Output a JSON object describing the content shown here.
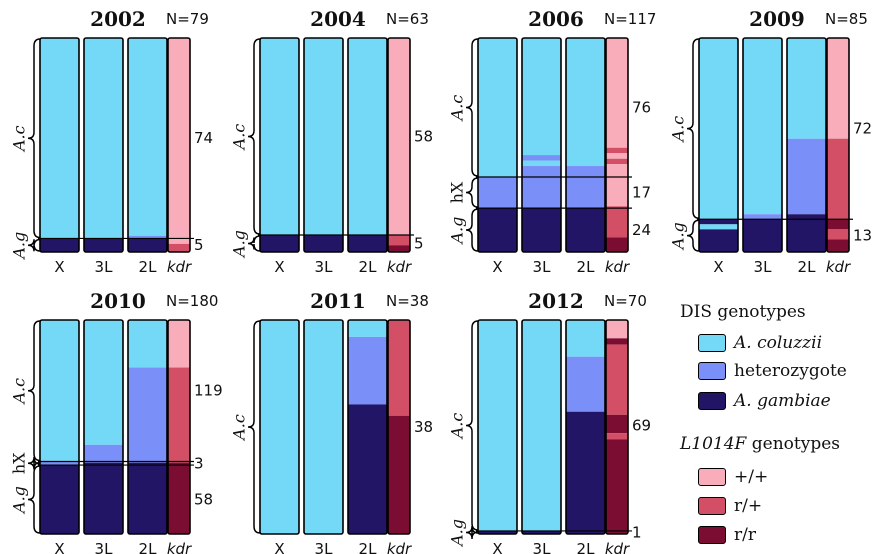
{
  "chart_data": {
    "type": "bar",
    "categories": [
      "X",
      "3L",
      "2L",
      "kdr"
    ],
    "columns": [
      "X",
      "3L",
      "2L",
      "kdr"
    ],
    "colors": {
      "coluzzii": "#74d9f6",
      "heterozygote": "#7a8ff8",
      "gambiae": "#221566",
      "kdr_ss": "#f9adbb",
      "kdr_rs": "#d34f66",
      "kdr_rr": "#7b0d33"
    },
    "panels": [
      {
        "title": "2002",
        "n": "N=79",
        "groups": [
          {
            "label": "A.c",
            "italic": true,
            "count": "74"
          },
          {
            "label": "A.g",
            "italic": true,
            "count": "5"
          }
        ],
        "columns": {
          "X": [
            [
              "coluzzii",
              74
            ],
            [
              "gambiae",
              5
            ]
          ],
          "3L": [
            [
              "coluzzii",
              74
            ],
            [
              "gambiae",
              5
            ]
          ],
          "2L": [
            [
              "coluzzii",
              73
            ],
            [
              "heterozygote",
              1
            ],
            [
              "gambiae",
              5
            ]
          ],
          "kdr": [
            [
              "kdr_ss",
              76
            ],
            [
              "kdr_rs",
              3
            ]
          ]
        }
      },
      {
        "title": "2004",
        "n": "N=63",
        "groups": [
          {
            "label": "A.c",
            "italic": true,
            "count": "58"
          },
          {
            "label": "A.g",
            "italic": true,
            "count": "5"
          }
        ],
        "columns": {
          "X": [
            [
              "coluzzii",
              58
            ],
            [
              "gambiae",
              5
            ]
          ],
          "3L": [
            [
              "coluzzii",
              58
            ],
            [
              "gambiae",
              5
            ]
          ],
          "2L": [
            [
              "coluzzii",
              58
            ],
            [
              "gambiae",
              5
            ]
          ],
          "kdr": [
            [
              "kdr_ss",
              58
            ],
            [
              "kdr_rs",
              3
            ],
            [
              "kdr_rr",
              2
            ]
          ]
        }
      },
      {
        "title": "2006",
        "n": "N=117",
        "groups": [
          {
            "label": "A.c",
            "italic": true,
            "count": "76"
          },
          {
            "label": "hX",
            "italic": false,
            "count": "17"
          },
          {
            "label": "A.g",
            "italic": true,
            "count": "24"
          }
        ],
        "columns": {
          "X": [
            [
              "coluzzii",
              76
            ],
            [
              "heterozygote",
              17
            ],
            [
              "gambiae",
              24
            ]
          ],
          "3L": [
            [
              "coluzzii",
              64
            ],
            [
              "heterozygote",
              3
            ],
            [
              "coluzzii",
              3
            ],
            [
              "heterozygote",
              23
            ],
            [
              "gambiae",
              24
            ]
          ],
          "2L": [
            [
              "coluzzii",
              70
            ],
            [
              "heterozygote",
              23
            ],
            [
              "gambiae",
              24
            ]
          ],
          "kdr": [
            [
              "kdr_ss",
              60
            ],
            [
              "kdr_rs",
              3
            ],
            [
              "kdr_ss",
              3
            ],
            [
              "kdr_rs",
              3
            ],
            [
              "kdr_ss",
              23
            ],
            [
              "kdr_rs",
              17
            ],
            [
              "kdr_rr",
              8
            ]
          ]
        }
      },
      {
        "title": "2009",
        "n": "N=85",
        "groups": [
          {
            "label": "A.c",
            "italic": true,
            "count": "72"
          },
          {
            "label": "A.g",
            "italic": true,
            "count": "13"
          }
        ],
        "columns": {
          "X": [
            [
              "coluzzii",
              72
            ],
            [
              "gambiae",
              2
            ],
            [
              "coluzzii",
              2
            ],
            [
              "gambiae",
              9
            ]
          ],
          "3L": [
            [
              "coluzzii",
              70
            ],
            [
              "heterozygote",
              2
            ],
            [
              "gambiae",
              13
            ]
          ],
          "2L": [
            [
              "coluzzii",
              40
            ],
            [
              "heterozygote",
              30
            ],
            [
              "gambiae",
              15
            ]
          ],
          "kdr": [
            [
              "kdr_ss",
              40
            ],
            [
              "kdr_rs",
              32
            ],
            [
              "kdr_rr",
              4
            ],
            [
              "kdr_rs",
              4
            ],
            [
              "kdr_rr",
              5
            ]
          ]
        }
      },
      {
        "title": "2010",
        "n": "N=180",
        "groups": [
          {
            "label": "A.c",
            "italic": true,
            "count": "119"
          },
          {
            "label": "hX",
            "italic": false,
            "count": "3"
          },
          {
            "label": "A.g",
            "italic": true,
            "count": "58"
          }
        ],
        "columns": {
          "X": [
            [
              "coluzzii",
              119
            ],
            [
              "heterozygote",
              3
            ],
            [
              "gambiae",
              58
            ]
          ],
          "3L": [
            [
              "coluzzii",
              105
            ],
            [
              "heterozygote",
              15
            ],
            [
              "gambiae",
              60
            ]
          ],
          "2L": [
            [
              "coluzzii",
              40
            ],
            [
              "heterozygote",
              80
            ],
            [
              "gambiae",
              60
            ]
          ],
          "kdr": [
            [
              "kdr_ss",
              40
            ],
            [
              "kdr_rs",
              80
            ],
            [
              "kdr_rr",
              60
            ]
          ]
        }
      },
      {
        "title": "2011",
        "n": "N=38",
        "groups": [
          {
            "label": "A.c",
            "italic": true,
            "count": "38"
          }
        ],
        "columns": {
          "X": [
            [
              "coluzzii",
              38
            ]
          ],
          "3L": [
            [
              "coluzzii",
              38
            ]
          ],
          "2L": [
            [
              "coluzzii",
              3
            ],
            [
              "heterozygote",
              12
            ],
            [
              "gambiae",
              23
            ]
          ],
          "kdr": [
            [
              "kdr_rs",
              17
            ],
            [
              "kdr_rr",
              21
            ]
          ]
        }
      },
      {
        "title": "2012",
        "n": "N=70",
        "groups": [
          {
            "label": "A.c",
            "italic": true,
            "count": "69"
          },
          {
            "label": "A.g",
            "italic": true,
            "count": "1"
          }
        ],
        "columns": {
          "X": [
            [
              "coluzzii",
              69
            ],
            [
              "gambiae",
              1
            ]
          ],
          "3L": [
            [
              "coluzzii",
              69
            ],
            [
              "gambiae",
              1
            ]
          ],
          "2L": [
            [
              "coluzzii",
              12
            ],
            [
              "heterozygote",
              18
            ],
            [
              "gambiae",
              40
            ]
          ],
          "kdr": [
            [
              "kdr_ss",
              6
            ],
            [
              "kdr_rr",
              2
            ],
            [
              "kdr_rs",
              23
            ],
            [
              "kdr_rr",
              6
            ],
            [
              "kdr_rs",
              2
            ],
            [
              "kdr_rr",
              31
            ]
          ]
        }
      }
    ]
  },
  "legend": {
    "dis_title": "DIS genotypes",
    "dis_items": [
      {
        "key": "coluzzii",
        "label": "A. coluzzii",
        "italic": true
      },
      {
        "key": "heterozygote",
        "label": "heterozygote",
        "italic": false
      },
      {
        "key": "gambiae",
        "label": "A. gambiae",
        "italic": true
      }
    ],
    "kdr_title_italic": "L1014F",
    "kdr_title_rest": " genotypes",
    "kdr_items": [
      {
        "key": "kdr_ss",
        "label": "+/+"
      },
      {
        "key": "kdr_rs",
        "label": "r/+"
      },
      {
        "key": "kdr_rr",
        "label": "r/r"
      }
    ]
  }
}
